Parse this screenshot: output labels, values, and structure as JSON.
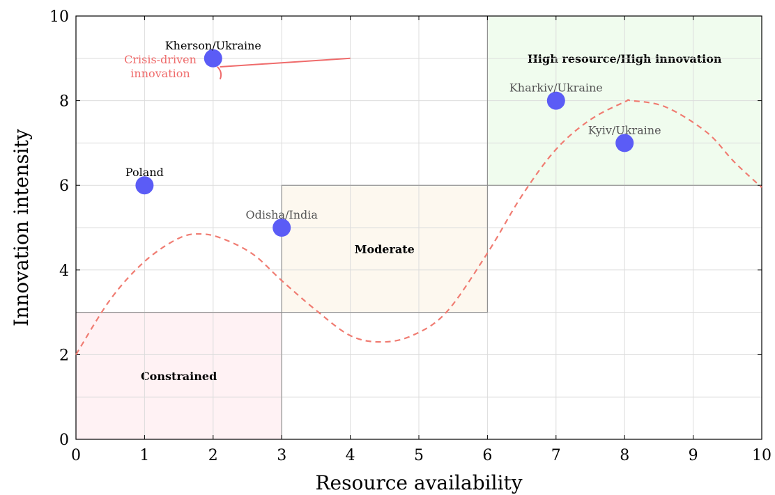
{
  "chart_data": {
    "type": "scatter",
    "xlabel": "Resource availability",
    "ylabel": "Innovation intensity",
    "xlim": [
      0,
      10
    ],
    "ylim": [
      0,
      10
    ],
    "xticks": [
      0,
      1,
      2,
      3,
      4,
      5,
      6,
      7,
      8,
      9,
      10
    ],
    "yticks": [
      0,
      2,
      4,
      6,
      8,
      10
    ],
    "grid": true,
    "point_color": "#5b5cf6",
    "points": [
      {
        "label": "Kherson/Ukraine",
        "x": 2,
        "y": 9,
        "label_color": "#000000"
      },
      {
        "label": "Poland",
        "x": 1,
        "y": 6,
        "label_color": "#000000"
      },
      {
        "label": "Odisha/India",
        "x": 3,
        "y": 5,
        "label_color": "#555555"
      },
      {
        "label": "Kharkiv/Ukraine",
        "x": 7,
        "y": 8,
        "label_color": "#555555"
      },
      {
        "label": "Kyiv/Ukraine",
        "x": 8,
        "y": 7,
        "label_color": "#555555"
      }
    ],
    "zones": [
      {
        "label": "Constrained",
        "x": [
          0,
          3
        ],
        "y": [
          0,
          3
        ],
        "fill": "#fff2f4"
      },
      {
        "label": "Moderate",
        "x": [
          3,
          6
        ],
        "y": [
          3,
          6
        ],
        "fill": "#fdf8ef"
      },
      {
        "label": "High resource/High innovation",
        "x": [
          6,
          10
        ],
        "y": [
          6,
          10
        ],
        "fill": "#f0fcee"
      }
    ],
    "curve": {
      "style": "dashed",
      "color": "#f07c72",
      "points": [
        [
          0,
          2
        ],
        [
          0.5,
          3.3
        ],
        [
          1,
          4.2
        ],
        [
          1.5,
          4.75
        ],
        [
          1.85,
          4.85
        ],
        [
          2.2,
          4.7
        ],
        [
          2.6,
          4.35
        ],
        [
          3,
          3.75
        ],
        [
          3.5,
          3.05
        ],
        [
          4,
          2.45
        ],
        [
          4.45,
          2.3
        ],
        [
          4.9,
          2.45
        ],
        [
          5.4,
          3.0
        ],
        [
          6,
          4.4
        ],
        [
          6.5,
          5.75
        ],
        [
          7,
          6.85
        ],
        [
          7.5,
          7.55
        ],
        [
          8,
          7.97
        ],
        [
          8.1,
          8.0
        ],
        [
          8.6,
          7.85
        ],
        [
          9.2,
          7.25
        ],
        [
          9.6,
          6.55
        ],
        [
          10,
          5.95
        ]
      ]
    },
    "annotation": {
      "text_lines": [
        "Crisis-driven",
        "innovation"
      ],
      "color": "#ef6b6b",
      "line_from": [
        4,
        9
      ],
      "line_to": [
        2.1,
        8.8
      ]
    }
  }
}
